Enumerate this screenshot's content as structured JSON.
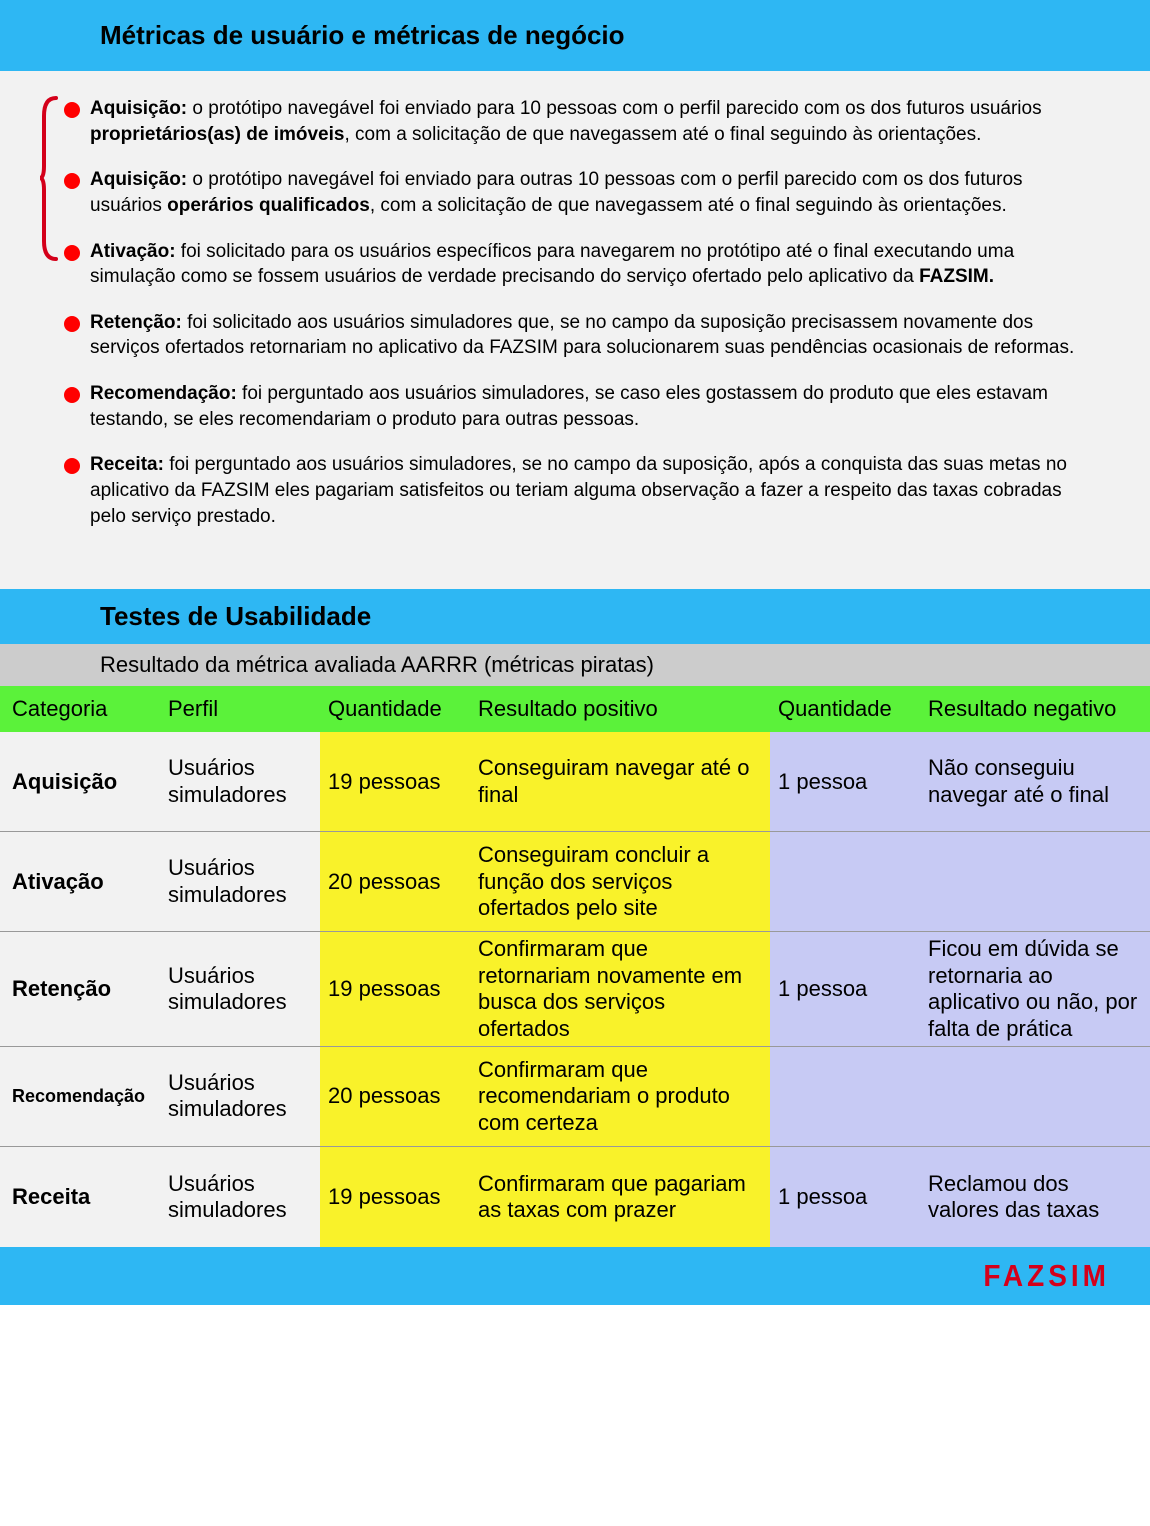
{
  "colors": {
    "header_bg": "#2eb7f3",
    "body_bg": "#f2f2f2",
    "subheader_bg": "#cccccc",
    "table_header_bg": "#5bf23a",
    "highlight_yellow": "#f9f22a",
    "highlight_blue": "#c7caf4",
    "bullet_red": "#ff0000",
    "bracket_red": "#d4001a",
    "logo_red": "#d4001a",
    "text": "#000000"
  },
  "header1": "Métricas de usuário e métricas de negócio",
  "bullets": [
    {
      "bold": "Aquisição:",
      "text": " o protótipo navegável foi enviado para 10 pessoas com o perfil parecido com os dos futuros usuários ",
      "bold2": "proprietários(as) de imóveis",
      "text2": ", com a solicitação de que navegassem até o final seguindo às orientações."
    },
    {
      "bold": "Aquisição:",
      "text": " o protótipo navegável foi enviado para outras 10 pessoas com o perfil parecido com os dos futuros usuários ",
      "bold2": "operários qualificados",
      "text2": ", com a solicitação de que navegassem até o final seguindo às orientações."
    },
    {
      "bold": "Ativação:",
      "text": " foi solicitado para os usuários específicos para navegarem no protótipo até o final executando uma simulação como se fossem usuários de verdade precisando do serviço ofertado pelo aplicativo da ",
      "bold2": "FAZSIM.",
      "text2": ""
    },
    {
      "bold": "Retenção:",
      "text": " foi solicitado aos usuários simuladores que, se no campo da suposição precisassem novamente dos serviços ofertados retornariam no aplicativo da FAZSIM para solucionarem suas pendências ocasionais de reformas.",
      "bold2": "",
      "text2": ""
    },
    {
      "bold": "Recomendação:",
      "text": " foi perguntado aos usuários simuladores, se caso eles gostassem do produto que eles estavam testando, se eles recomendariam o produto para outras pessoas.",
      "bold2": "",
      "text2": ""
    },
    {
      "bold": "Receita:",
      "text": " foi perguntado aos usuários simuladores, se no campo da suposição, após a conquista das suas metas no aplicativo da FAZSIM eles pagariam satisfeitos ou teriam alguma observação a fazer a respeito das taxas cobradas pelo serviço prestado.",
      "bold2": "",
      "text2": ""
    }
  ],
  "header2": "Testes de Usabilidade",
  "subheader": "Resultado da métrica avaliada AARRR (métricas piratas)",
  "table": {
    "columns": [
      "Categoria",
      "Perfil",
      "Quantidade",
      "Resultado positivo",
      "Quantidade",
      "Resultado negativo"
    ],
    "rows": [
      {
        "cat": "Aquisição",
        "perfil": "Usuários simuladores",
        "q1": "19 pessoas",
        "pos": "Conseguiram navegar até o final",
        "q2": "1 pessoa",
        "neg": "Não conseguiu navegar até o final",
        "cat_small": false
      },
      {
        "cat": "Ativação",
        "perfil": "Usuários simuladores",
        "q1": "20 pessoas",
        "pos": "Conseguiram concluir a função dos serviços ofertados pelo site",
        "q2": "",
        "neg": "",
        "cat_small": false
      },
      {
        "cat": "Retenção",
        "perfil": "Usuários simuladores",
        "q1": "19 pessoas",
        "pos": "Confirmaram que retornariam novamente em busca dos serviços ofertados",
        "q2": "1 pessoa",
        "neg": "Ficou em dúvida se retornaria ao aplicativo ou não, por falta de prática",
        "cat_small": false
      },
      {
        "cat": "Recomendação",
        "perfil": "Usuários simuladores",
        "q1": "20 pessoas",
        "pos": "Confirmaram que recomendariam o produto com certeza",
        "q2": "",
        "neg": "",
        "cat_small": true
      },
      {
        "cat": "Receita",
        "perfil": "Usuários simuladores",
        "q1": "19 pessoas",
        "pos": "Confirmaram que pagariam as taxas com prazer",
        "q2": "1 pessoa",
        "neg": "Reclamou dos valores das taxas",
        "cat_small": false
      }
    ]
  },
  "logo": "FAZSIM"
}
